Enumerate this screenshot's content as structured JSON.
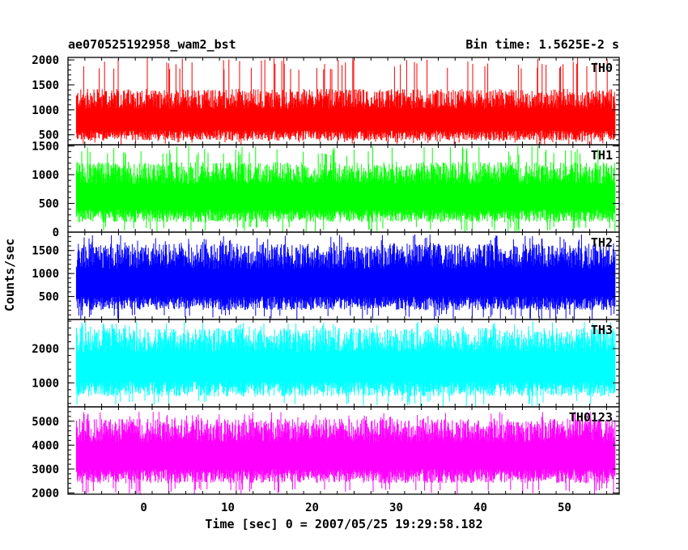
{
  "chart_data": {
    "type": "line",
    "title_left": "ae070525192958_wam2_bst",
    "title_right": "Bin time: 1.5625E-2 s",
    "xlabel": "Time [sec] 0 = 2007/05/25 19:29:58.182",
    "ylabel": "Counts/sec",
    "xlim": [
      -9,
      56.5
    ],
    "x_data_range": [
      -8,
      56
    ],
    "x_ticks": [
      0,
      10,
      20,
      30,
      40,
      50
    ],
    "grid": false,
    "panels": [
      {
        "name": "TH0",
        "color": "#ff0000",
        "ylim": [
          300,
          2050
        ],
        "y_ticks": [
          500,
          1000,
          1500,
          2000
        ],
        "baseline": 800,
        "noise_low": 420,
        "noise_high": 620,
        "spike_max": 2050
      },
      {
        "name": "TH1",
        "color": "#00ff00",
        "ylim": [
          0,
          1520
        ],
        "y_ticks": [
          0,
          500,
          1000,
          1500
        ],
        "baseline": 620,
        "noise_low": 450,
        "noise_high": 600,
        "spike_max": 1500
      },
      {
        "name": "TH2",
        "color": "#0000ff",
        "ylim": [
          0,
          1900
        ],
        "y_ticks": [
          500,
          1000,
          1500
        ],
        "baseline": 800,
        "noise_low": 600,
        "noise_high": 850,
        "spike_max": 1850
      },
      {
        "name": "TH3",
        "color": "#00ffff",
        "ylim": [
          300,
          2850
        ],
        "y_ticks": [
          1000,
          2000
        ],
        "baseline": 1500,
        "noise_low": 900,
        "noise_high": 1100,
        "spike_max": 2800
      },
      {
        "name": "TH0123",
        "color": "#ff00ff",
        "ylim": [
          1950,
          5600
        ],
        "y_ticks": [
          2000,
          3000,
          4000,
          5000
        ],
        "baseline": 3600,
        "noise_low": 1200,
        "noise_high": 1500,
        "spike_max": 5400
      }
    ]
  }
}
